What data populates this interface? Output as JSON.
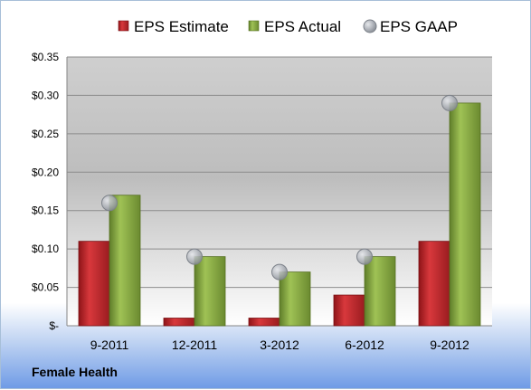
{
  "chart_data": {
    "type": "bar",
    "categories": [
      "9-2011",
      "12-2011",
      "3-2012",
      "6-2012",
      "9-2012"
    ],
    "series": [
      {
        "name": "EPS Estimate",
        "kind": "bar",
        "color": "#c0282d",
        "values": [
          0.11,
          0.01,
          0.01,
          0.04,
          0.11
        ]
      },
      {
        "name": "EPS Actual",
        "kind": "bar",
        "color": "#8aab42",
        "values": [
          0.17,
          0.09,
          0.07,
          0.09,
          0.29
        ]
      },
      {
        "name": "EPS GAAP",
        "kind": "marker",
        "color": "#b8bcc4",
        "values": [
          0.16,
          0.09,
          0.07,
          0.09,
          0.29
        ]
      }
    ],
    "ylim": [
      0,
      0.35
    ],
    "yticks": [
      0,
      0.05,
      0.1,
      0.15,
      0.2,
      0.25,
      0.3,
      0.35
    ],
    "ytick_labels": [
      "$-",
      "$0.05",
      "$0.10",
      "$0.15",
      "$0.20",
      "$0.25",
      "$0.30",
      "$0.35"
    ],
    "grid": true,
    "legend_position": "top"
  },
  "footer": {
    "company": "Female Health"
  }
}
